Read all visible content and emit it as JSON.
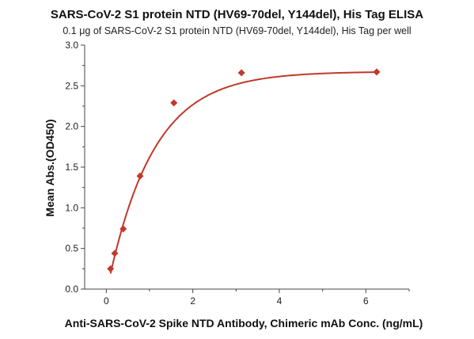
{
  "chart_data": {
    "type": "scatter",
    "title": "SARS-CoV-2 S1 protein NTD (HV69-70del, Y144del), His Tag ELISA",
    "subtitle": "0.1 μg of SARS-CoV-2 S1 protein NTD (HV69-70del, Y144del), His Tag per well",
    "xlabel": "Anti-SARS-CoV-2 Spike NTD Antibody, Chimeric mAb Conc. (ng/mL)",
    "ylabel": "Mean Abs.(OD450)",
    "xlim": [
      -0.5,
      7
    ],
    "ylim": [
      0,
      3.0
    ],
    "xticks": [
      0,
      2,
      4,
      6
    ],
    "yticks": [
      0.0,
      0.5,
      1.0,
      1.5,
      2.0,
      2.5,
      3.0
    ],
    "ytick_labels": [
      "0.0",
      "0.5",
      "1.0",
      "1.5",
      "2.0",
      "2.5",
      "3.0"
    ],
    "grid": false,
    "series": [
      {
        "x": [
          0.098,
          0.195,
          0.391,
          0.781,
          1.5625,
          3.125,
          6.25
        ],
        "y": [
          0.25,
          0.44,
          0.74,
          1.39,
          2.29,
          2.66,
          2.67
        ]
      }
    ],
    "fit_curve": true,
    "colors": {
      "marker": "#c0392b",
      "curve": "#c0392b",
      "axis": "#444444"
    }
  }
}
